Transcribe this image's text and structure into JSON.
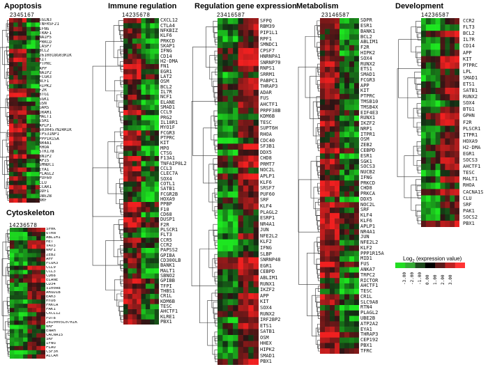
{
  "legend": {
    "title_prefix": "Log",
    "title_sub": "2",
    "title_suffix": "(expression value)",
    "ticks": [
      "-3.00",
      "-2.00",
      "-1.00",
      "0.00",
      "1.00",
      "2.00",
      "3.00"
    ],
    "colors": [
      "#22dd22",
      "#33aa33",
      "#1e4a1e",
      "#000000",
      "#5a1a1a",
      "#bb2222",
      "#ff3333"
    ]
  },
  "panels": [
    {
      "id": "apoptosis",
      "title": "Apoptosis",
      "columns": "2 3 4 5 1 6 7",
      "genes": [
        "EGLN3",
        "TNFRSF21",
        "IFNG",
        "TRAF1",
        "NAIP5",
        "PRKCD",
        "CASP7",
        "BCL2",
        "2610018G03RIK",
        "KIT",
        "PTPRC",
        "APP",
        "NAIP2",
        "FCGR3",
        "NCF1",
        "HIPK2",
        "F2R",
        "BTG1",
        "SGK1",
        "GSN",
        "GARS",
        "DRAM1",
        "MALT1",
        "ESR1",
        "APLP1",
        "6030457N24RIK",
        "TP53INP1",
        "PPP1R15A",
        "NR4A1",
        "RHOA",
        "STK17B",
        "BNIP2",
        "APIS",
        "SMNDC1",
        "EYA1",
        "PLAGL2",
        "PUF60",
        "CLU",
        "CCAR1",
        "ODF1",
        "UBE2B",
        "NRF"
      ]
    },
    {
      "id": "cytoskeleton",
      "title": "Cytoskeleton",
      "columns": "1 4 2 3 6 5 7 8",
      "genes": [
        "SPHK",
        "UTRN",
        "ABLIM1",
        "MET",
        "VAV3",
        "NRP1",
        "ZEB2",
        "APP",
        "FCGR3",
        "CCL9",
        "CCL3",
        "CD68",
        "ELANE",
        "CD34",
        "S100A8",
        "ARGDIB",
        "EAR3",
        "MYO6",
        "PRKCA",
        "PAK1",
        "CXCL12",
        "FUT8",
        "2610005L07RIK",
        "NRP",
        "ENAH",
        "CACNA1S",
        "SRF",
        "IFNG",
        "PLAU",
        "CSF3R",
        "ALCAM"
      ]
    },
    {
      "id": "immune",
      "title": "Immune regulation",
      "columns": "1 4 2 3 5 6 7 8",
      "genes": [
        "CXCL12",
        "CTLA4",
        "NFKBIZ",
        "KLF6",
        "PRKCD",
        "SKAP1",
        "IFNG",
        "CD14",
        "H2-DMA",
        "FN1",
        "EGR1",
        "LAT2",
        "OSM",
        "BCL2",
        "IL7R",
        "NCF1",
        "ELANE",
        "SMAD1",
        "CCL9",
        "PRG2",
        "IL18R1",
        "MYO1F",
        "FCGR3",
        "PTPRC",
        "KIT",
        "MPO",
        "CTSG",
        "F13A1",
        "TNFAIP8L2",
        "CCL3",
        "CLEC7A",
        "SOX4",
        "COTL1",
        "SATB1",
        "FCGR2B",
        "HOXA9",
        "PPBP",
        "F10",
        "CD68",
        "DUSP1",
        "F2R",
        "PLSCR1",
        "FLT3",
        "CCR5",
        "CCR2",
        "PAPSS2",
        "GPIBA",
        "CD300LB",
        "BANK1",
        "MALT1",
        "SBNO2",
        "GPIBB",
        "TFPI",
        "THBS1",
        "CR1L",
        "KDM6B",
        "TESC",
        "AHCTF1",
        "KLRE1",
        "PBX1"
      ]
    },
    {
      "id": "regulation",
      "title": "Regulation gene expression",
      "columns": "2 3 4 1 6 5 8 7",
      "genes": [
        "SFPQ",
        "RBM39",
        "PIP1L1",
        "RPF1",
        "SMNDC1",
        "CPSF7",
        "HNRNPA1",
        "SNRNP70",
        "RNPS1",
        "SRRM1",
        "PABPC1",
        "THRAP3",
        "ADAR",
        "FUS",
        "AHCTF1",
        "PRPF38B",
        "KDM6B",
        "TESC",
        "SUPT6H",
        "RHOA",
        "CDC40",
        "SF3B1",
        "DDX5",
        "CHD8",
        "PRMT7",
        "NOC2L",
        "APLP1",
        "KLF6",
        "SRSF7",
        "PUF60",
        "SRF",
        "KLF4",
        "PLAGL2",
        "ESRP1",
        "NR4A1",
        "JUN",
        "NFE2L2",
        "KLF2",
        "IFNG",
        "SLBP",
        "SNRNP48",
        "EGR1",
        "CEBPD",
        "ABLIM1",
        "RUNX1",
        "IKZF2",
        "APP",
        "KIT",
        "SOX4",
        "RUNX2",
        "IRF2BP2",
        "ETS1",
        "SATB1",
        "OSM",
        "HHEX",
        "HIPK2",
        "SMAD1",
        "PBX1"
      ]
    },
    {
      "id": "metabolism",
      "title": "Metabolism",
      "columns": "2 3 1 4 6 5 8 7",
      "genes": [
        "SDPR",
        "ESR1",
        "BANK1",
        "BCL2",
        "ABLIM1",
        "F2R",
        "HIPK2",
        "SOX4",
        "RUNX2",
        "ETS1",
        "SMAD1",
        "FCGR3",
        "APP",
        "KIT",
        "PTPRC",
        "TMSB10",
        "TMSB4X",
        "EIF4E3",
        "RUNX1",
        "IKZF2",
        "NRP1",
        "ITPR1",
        "OSM",
        "ZEB2",
        "CEBPD",
        "ESR1",
        "SGK1",
        "SOCS3",
        "NUCB2",
        "IFNG",
        "PRKCD",
        "CHD8",
        "PRKCA",
        "DDX5",
        "NOC2L",
        "SRF",
        "KLF4",
        "KLF6",
        "APLP1",
        "NR4A1",
        "JUN",
        "NFE2L2",
        "KLF2",
        "PPP1R15A",
        "MID1",
        "FUS",
        "ANKA7",
        "TRPC2",
        "RICTOR",
        "AHCTF1",
        "TESC",
        "CR1L",
        "SLC9A8",
        "RTN4",
        "PLAGL2",
        "UBE2B",
        "ATP2A2",
        "EYA1",
        "THRAP3",
        "CEP192",
        "PBX1",
        "TFRC"
      ]
    },
    {
      "id": "development",
      "title": "Development",
      "columns": "1 4 2 3 6 5 8 7",
      "genes": [
        "CCR2",
        "FLT3",
        "BCL2",
        "IL7R",
        "CD14",
        "APP",
        "KIT",
        "PTPRC",
        "LPL",
        "SMAD1",
        "ETS1",
        "SATB1",
        "RUNX2",
        "SOX4",
        "BTG1",
        "GPHN",
        "F2R",
        "PLSCR1",
        "ITPR1",
        "HOXA9",
        "H2-DMA",
        "EGR1",
        "SOCS3",
        "AHCTF1",
        "TESC",
        "MALT1",
        "RHOA",
        "CACNA1S",
        "CLU",
        "SRF",
        "PAK1",
        "SOCS2",
        "PBX1"
      ]
    }
  ]
}
